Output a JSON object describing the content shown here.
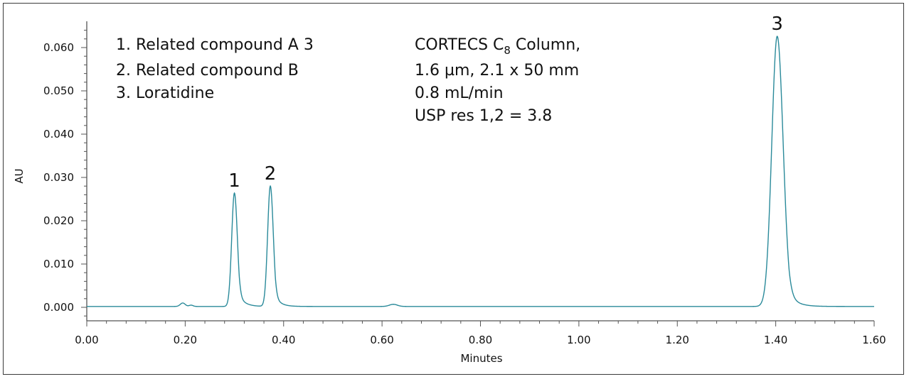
{
  "chart_data": {
    "type": "line",
    "xlabel": "Minutes",
    "ylabel": "AU",
    "xlim": [
      0.0,
      1.6
    ],
    "ylim": [
      -0.002,
      0.066
    ],
    "x_ticks": [
      "0.00",
      "0.20",
      "0.40",
      "0.60",
      "0.80",
      "1.00",
      "1.20",
      "1.40",
      "1.60"
    ],
    "y_ticks": [
      "0.000",
      "0.010",
      "0.020",
      "0.030",
      "0.040",
      "0.050",
      "0.060"
    ],
    "grid": false,
    "line_color": "#2a8a9a",
    "baseline": 0.0002,
    "peaks": [
      {
        "label": "1",
        "time": 0.3,
        "height": 0.0262,
        "sigma_left": 0.0055,
        "tau": 0.012
      },
      {
        "label": "2",
        "time": 0.373,
        "height": 0.0278,
        "sigma_left": 0.0055,
        "tau": 0.011
      },
      {
        "label": "3",
        "time": 1.403,
        "height": 0.0624,
        "sigma_left": 0.011,
        "tau": 0.016
      }
    ],
    "minor_features": [
      {
        "time": 0.195,
        "height": 0.0008,
        "sigma": 0.005
      },
      {
        "time": 0.212,
        "height": 0.0003,
        "sigma": 0.004
      },
      {
        "time": 0.623,
        "height": 0.0005,
        "sigma": 0.008
      }
    ],
    "legend": [
      "1. Related compound A 3",
      "2. Related compound B",
      "3. Loratidine"
    ],
    "conditions": {
      "line1_prefix": "CORTECS C",
      "line1_subscript": "8",
      "line1_suffix": " Column,",
      "line2": "1.6 µm, 2.1 x 50 mm",
      "line3": "0.8 mL/min",
      "line4": "USP res 1,2 = 3.8"
    }
  }
}
